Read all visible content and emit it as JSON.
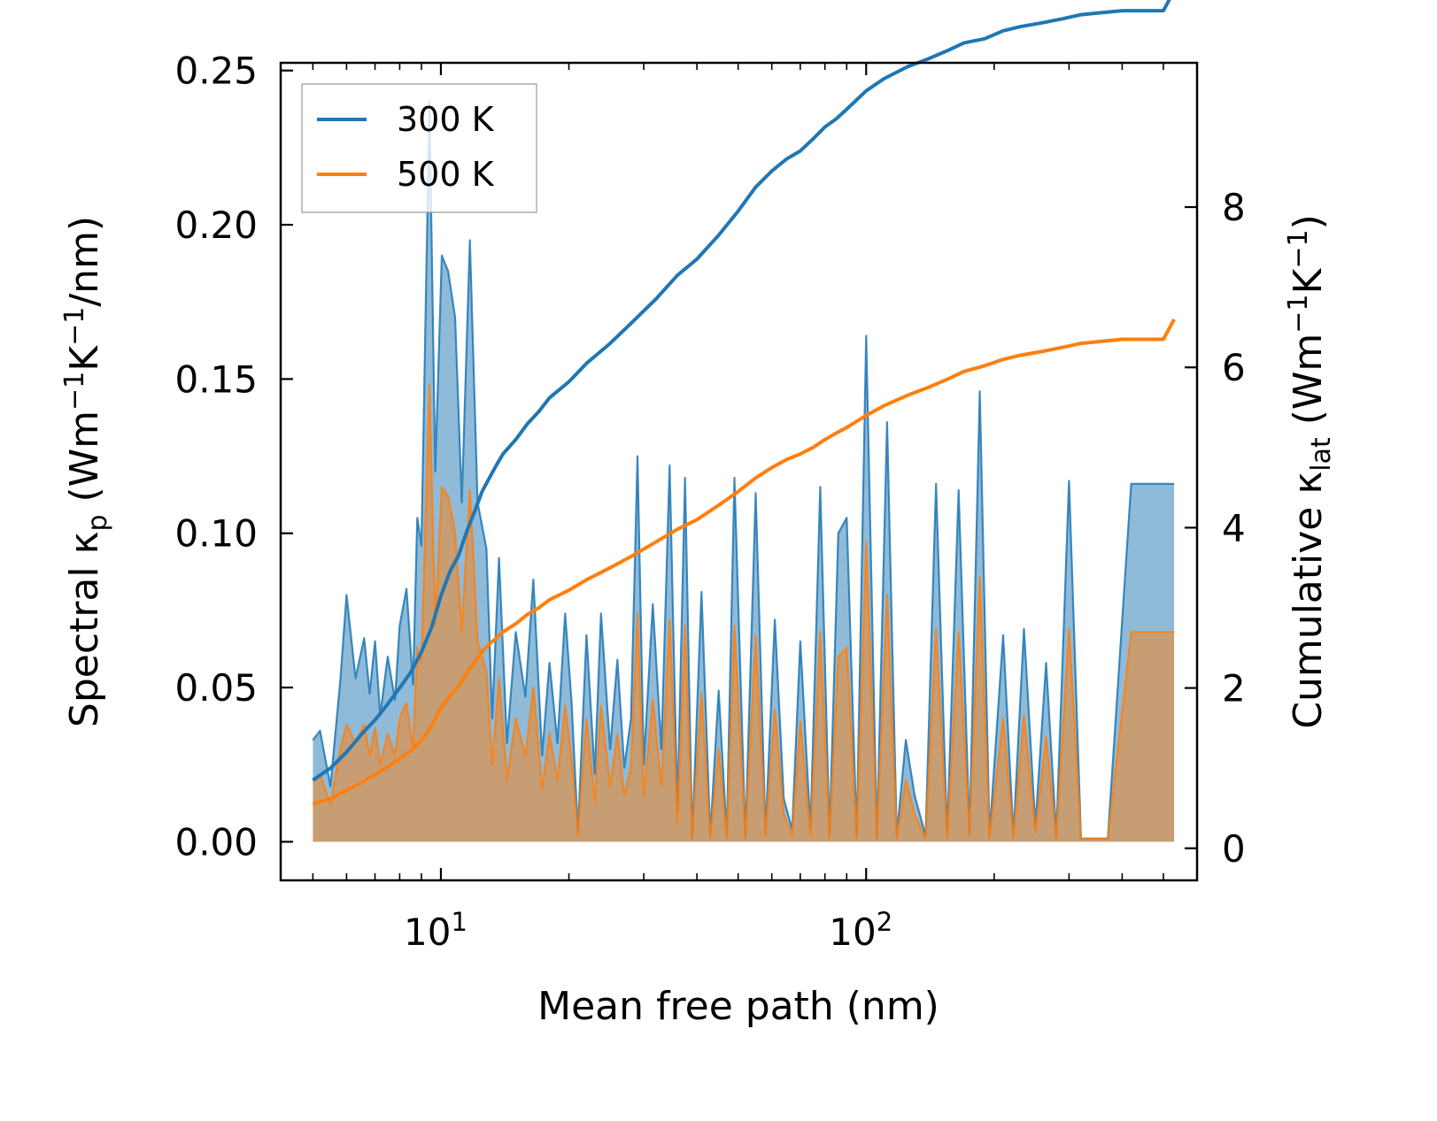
{
  "chart_data": {
    "type": "line",
    "x_scale": "log",
    "xlabel": "Mean free path (nm)",
    "ylabel_left": {
      "base": "Spectral κ",
      "sub": "p",
      "units_open": " (Wm",
      "exp1": "−1",
      "mid": "K",
      "exp2": "−1",
      "units_close": "/nm)"
    },
    "ylabel_right": {
      "base": "Cumulative κ",
      "sub": "lat",
      "units_open": " (Wm",
      "exp1": "−1",
      "mid": "K",
      "exp2": "−1",
      "units_close": ")"
    },
    "xlim": [
      4.2,
      600
    ],
    "ylim_left": [
      -0.0125,
      0.2525
    ],
    "ylim_right": [
      -0.4,
      9.8
    ],
    "x_ticks": [
      {
        "value": 10,
        "base": "10",
        "exp": "1"
      },
      {
        "value": 100,
        "base": "10",
        "exp": "2"
      }
    ],
    "y_ticks_left": [
      {
        "value": 0.0,
        "label": "0.00"
      },
      {
        "value": 0.05,
        "label": "0.05"
      },
      {
        "value": 0.1,
        "label": "0.10"
      },
      {
        "value": 0.15,
        "label": "0.15"
      },
      {
        "value": 0.2,
        "label": "0.20"
      },
      {
        "value": 0.25,
        "label": "0.25"
      }
    ],
    "y_ticks_right": [
      {
        "value": 0,
        "label": "0"
      },
      {
        "value": 2,
        "label": "2"
      },
      {
        "value": 4,
        "label": "4"
      },
      {
        "value": 6,
        "label": "6"
      },
      {
        "value": 8,
        "label": "8"
      }
    ],
    "legend": {
      "position": "top-left",
      "entries": [
        {
          "label": "300 K",
          "color": "#1f77b4"
        },
        {
          "label": "500 K",
          "color": "#ff7f0e"
        }
      ]
    },
    "series": [
      {
        "name": "300 K",
        "color": "#1f77b4",
        "spectral": {
          "x": [
            5.0,
            5.2,
            5.5,
            5.8,
            6.0,
            6.3,
            6.6,
            6.8,
            7.0,
            7.2,
            7.5,
            7.8,
            8.0,
            8.3,
            8.6,
            8.8,
            9.0,
            9.4,
            9.7,
            10.05,
            10.4,
            10.8,
            11.2,
            11.7,
            12.2,
            12.8,
            13.2,
            13.7,
            14.3,
            15.0,
            15.8,
            16.5,
            17.3,
            18.0,
            18.8,
            19.6,
            20.3,
            21.0,
            22.0,
            23.0,
            23.8,
            25.0,
            26.0,
            27.0,
            28.0,
            29.0,
            30.0,
            31.5,
            33.0,
            34.5,
            36.0,
            37.5,
            39.0,
            41.0,
            43.0,
            45.0,
            47.0,
            49.0,
            52.0,
            55.0,
            58.0,
            61.0,
            64.0,
            67.0,
            70.0,
            74.0,
            78.0,
            82.0,
            86.0,
            90.0,
            95.0,
            100.0,
            106.0,
            112.0,
            118.0,
            124.0,
            130.0,
            138.0,
            146.0,
            155.0,
            165.0,
            175.0,
            185.0,
            195.0,
            210.0,
            222.0,
            235.0,
            250.0,
            265.0,
            280.0,
            300.0,
            320.0,
            345.0,
            370.0,
            420.0,
            480.0,
            530.0
          ],
          "y": [
            0.033,
            0.036,
            0.018,
            0.052,
            0.08,
            0.053,
            0.066,
            0.048,
            0.065,
            0.041,
            0.06,
            0.046,
            0.07,
            0.082,
            0.051,
            0.105,
            0.096,
            0.24,
            0.12,
            0.19,
            0.185,
            0.17,
            0.11,
            0.195,
            0.11,
            0.095,
            0.04,
            0.092,
            0.032,
            0.068,
            0.047,
            0.085,
            0.028,
            0.058,
            0.032,
            0.074,
            0.045,
            0.003,
            0.067,
            0.022,
            0.074,
            0.03,
            0.059,
            0.024,
            0.04,
            0.125,
            0.025,
            0.077,
            0.03,
            0.122,
            0.01,
            0.118,
            0.001,
            0.081,
            0.002,
            0.049,
            0.002,
            0.118,
            0.001,
            0.113,
            0.003,
            0.072,
            0.014,
            0.004,
            0.065,
            0.004,
            0.115,
            0.002,
            0.1,
            0.105,
            0.002,
            0.164,
            0.001,
            0.136,
            0.002,
            0.033,
            0.015,
            0.002,
            0.116,
            0.002,
            0.114,
            0.003,
            0.146,
            0.002,
            0.067,
            0.002,
            0.069,
            0.005,
            0.058,
            0.002,
            0.117,
            0.001,
            0.001,
            0.001,
            0.116,
            0.116,
            0.116
          ]
        },
        "cumulative": {
          "x": [
            5.0,
            5.5,
            6.0,
            6.5,
            7.0,
            7.5,
            8.0,
            8.5,
            9.0,
            9.5,
            10.0,
            10.5,
            11.0,
            11.5,
            12.0,
            12.5,
            13.0,
            13.5,
            14.0,
            15.0,
            16.0,
            17.0,
            18.0,
            20.0,
            22.0,
            25.0,
            28.0,
            32.0,
            36.0,
            40.0,
            45.0,
            50.0,
            55.0,
            60.0,
            65.0,
            70.0,
            75.0,
            80.0,
            85.0,
            90.0,
            100.0,
            110.0,
            125.0,
            140.0,
            155.0,
            170.0,
            190.0,
            210.0,
            230.0,
            260.0,
            290.0,
            320.0,
            350.0,
            400.0,
            450.0,
            500.0,
            530.0
          ],
          "y": [
            0.85,
            1.0,
            1.2,
            1.42,
            1.6,
            1.8,
            2.0,
            2.2,
            2.45,
            2.75,
            3.15,
            3.45,
            3.65,
            3.95,
            4.2,
            4.45,
            4.62,
            4.78,
            4.92,
            5.1,
            5.3,
            5.45,
            5.62,
            5.82,
            6.05,
            6.3,
            6.55,
            6.85,
            7.15,
            7.35,
            7.65,
            7.95,
            8.25,
            8.45,
            8.6,
            8.7,
            8.85,
            9.0,
            9.1,
            9.22,
            9.45,
            9.6,
            9.75,
            9.85,
            9.95,
            10.05,
            10.1,
            10.2,
            10.25,
            10.3,
            10.35,
            10.4,
            10.42,
            10.45,
            10.45,
            10.45,
            10.7
          ]
        }
      },
      {
        "name": "500 K",
        "color": "#ff7f0e",
        "spectral": {
          "x": [
            5.0,
            5.2,
            5.5,
            5.8,
            6.0,
            6.3,
            6.6,
            6.8,
            7.0,
            7.2,
            7.5,
            7.8,
            8.0,
            8.3,
            8.6,
            8.8,
            9.0,
            9.4,
            9.7,
            10.05,
            10.4,
            10.8,
            11.2,
            11.7,
            12.2,
            12.8,
            13.2,
            13.7,
            14.3,
            15.0,
            15.8,
            16.5,
            17.3,
            18.0,
            18.8,
            19.6,
            20.3,
            21.0,
            22.0,
            23.0,
            23.8,
            25.0,
            26.0,
            27.0,
            28.0,
            29.0,
            30.0,
            31.5,
            33.0,
            34.5,
            36.0,
            37.5,
            39.0,
            41.0,
            43.0,
            45.0,
            47.0,
            49.0,
            52.0,
            55.0,
            58.0,
            61.0,
            64.0,
            67.0,
            70.0,
            74.0,
            78.0,
            82.0,
            86.0,
            90.0,
            95.0,
            100.0,
            106.0,
            112.0,
            118.0,
            124.0,
            130.0,
            138.0,
            146.0,
            155.0,
            165.0,
            175.0,
            185.0,
            195.0,
            210.0,
            222.0,
            235.0,
            250.0,
            265.0,
            280.0,
            300.0,
            320.0,
            345.0,
            370.0,
            420.0,
            480.0,
            530.0
          ],
          "y": [
            0.02,
            0.022,
            0.012,
            0.03,
            0.038,
            0.032,
            0.038,
            0.028,
            0.037,
            0.025,
            0.035,
            0.028,
            0.04,
            0.045,
            0.03,
            0.063,
            0.058,
            0.148,
            0.07,
            0.115,
            0.112,
            0.1,
            0.068,
            0.114,
            0.065,
            0.055,
            0.025,
            0.053,
            0.02,
            0.04,
            0.028,
            0.05,
            0.017,
            0.035,
            0.02,
            0.044,
            0.027,
            0.002,
            0.04,
            0.013,
            0.044,
            0.018,
            0.035,
            0.015,
            0.024,
            0.074,
            0.015,
            0.046,
            0.018,
            0.072,
            0.006,
            0.07,
            0.001,
            0.048,
            0.001,
            0.03,
            0.001,
            0.07,
            0.001,
            0.067,
            0.002,
            0.043,
            0.009,
            0.002,
            0.039,
            0.002,
            0.068,
            0.001,
            0.06,
            0.063,
            0.001,
            0.097,
            0.001,
            0.08,
            0.001,
            0.02,
            0.009,
            0.001,
            0.069,
            0.001,
            0.068,
            0.002,
            0.086,
            0.001,
            0.04,
            0.001,
            0.041,
            0.003,
            0.034,
            0.001,
            0.069,
            0.001,
            0.001,
            0.001,
            0.068,
            0.068,
            0.068
          ]
        },
        "cumulative": {
          "x": [
            5.0,
            5.5,
            6.0,
            6.5,
            7.0,
            7.5,
            8.0,
            8.5,
            9.0,
            9.5,
            10.0,
            10.5,
            11.0,
            11.5,
            12.0,
            12.5,
            13.0,
            13.5,
            14.0,
            15.0,
            16.0,
            17.0,
            18.0,
            20.0,
            22.0,
            25.0,
            28.0,
            32.0,
            36.0,
            40.0,
            45.0,
            50.0,
            55.0,
            60.0,
            65.0,
            70.0,
            75.0,
            80.0,
            85.0,
            90.0,
            100.0,
            110.0,
            125.0,
            140.0,
            155.0,
            170.0,
            190.0,
            210.0,
            230.0,
            260.0,
            290.0,
            320.0,
            350.0,
            400.0,
            450.0,
            500.0,
            530.0
          ],
          "y": [
            0.55,
            0.62,
            0.72,
            0.82,
            0.92,
            1.02,
            1.12,
            1.22,
            1.35,
            1.52,
            1.75,
            1.9,
            2.02,
            2.18,
            2.32,
            2.45,
            2.55,
            2.62,
            2.7,
            2.8,
            2.92,
            3.0,
            3.1,
            3.22,
            3.35,
            3.5,
            3.64,
            3.82,
            3.98,
            4.1,
            4.28,
            4.45,
            4.62,
            4.75,
            4.85,
            4.92,
            5.0,
            5.1,
            5.18,
            5.25,
            5.4,
            5.52,
            5.65,
            5.75,
            5.85,
            5.95,
            6.02,
            6.1,
            6.15,
            6.2,
            6.25,
            6.3,
            6.32,
            6.35,
            6.35,
            6.35,
            6.6
          ]
        }
      }
    ]
  }
}
